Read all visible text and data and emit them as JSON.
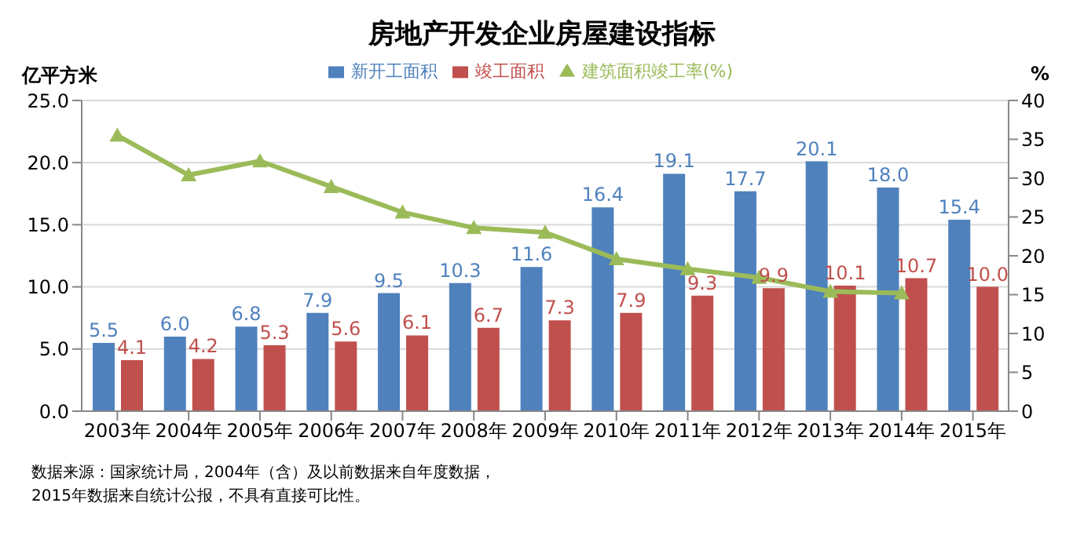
{
  "chart_data": {
    "type": "bar",
    "title": "房地产开发企业房屋建设指标",
    "ylabel": "亿平方米",
    "y2label": "%",
    "categories": [
      "2003年",
      "2004年",
      "2005年",
      "2006年",
      "2007年",
      "2008年",
      "2009年",
      "2010年",
      "2011年",
      "2012年",
      "2013年",
      "2014年",
      "2015年"
    ],
    "series": [
      {
        "name": "新开工面积",
        "color": "#4f81bd",
        "values": [
          5.5,
          6.0,
          6.8,
          7.9,
          9.5,
          10.3,
          11.6,
          16.4,
          19.1,
          17.7,
          20.1,
          18.0,
          15.4
        ],
        "value_labels": [
          "5.5",
          "6.0",
          "6.8",
          "7.9",
          "9.5",
          "10.3",
          "11.6",
          "16.4",
          "19.1",
          "17.7",
          "20.1",
          "18.0",
          "15.4"
        ]
      },
      {
        "name": "竣工面积",
        "color": "#c0504d",
        "values": [
          4.1,
          4.2,
          5.3,
          5.6,
          6.1,
          6.7,
          7.3,
          7.9,
          9.3,
          9.9,
          10.1,
          10.7,
          10.0
        ],
        "value_labels": [
          "4.1",
          "4.2",
          "5.3",
          "5.6",
          "6.1",
          "6.7",
          "7.3",
          "7.9",
          "9.3",
          "9.9",
          "10.1",
          "10.7",
          "10.0"
        ]
      },
      {
        "name": "建筑面积竣工率(%)",
        "type": "line",
        "axis": "y2",
        "color": "#9bbb59",
        "values": [
          35.5,
          30.4,
          32.2,
          28.9,
          25.6,
          23.6,
          23.0,
          19.6,
          18.3,
          17.2,
          15.4,
          15.2,
          null
        ]
      }
    ],
    "ylim": [
      0,
      25
    ],
    "yticks": [
      {
        "value": 0,
        "label": "0.0"
      },
      {
        "value": 5,
        "label": "5.0"
      },
      {
        "value": 10,
        "label": "10.0"
      },
      {
        "value": 15,
        "label": "15.0"
      },
      {
        "value": 20,
        "label": "20.0"
      },
      {
        "value": 25,
        "label": "25.0"
      }
    ],
    "y2lim": [
      0,
      40
    ],
    "y2ticks": [
      0,
      5,
      10,
      15,
      20,
      25,
      30,
      35,
      40
    ],
    "grid": "y",
    "legend": "top",
    "marker": "triangle",
    "line_style": "solid",
    "annotations": [
      "数据来源：国家统计局，2004年（含）及以前数据来自年度数据，",
      "2015年数据来自统计公报，不具有直接可比性。"
    ]
  }
}
